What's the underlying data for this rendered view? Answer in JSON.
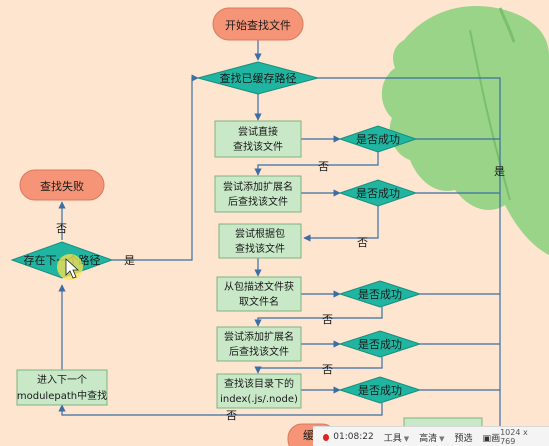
{
  "colors": {
    "background": "#fde5cf",
    "process_fill": "#c8e8c8",
    "process_stroke": "#7fb27f",
    "decision_fill": "#1fb5a0",
    "terminal_fill": "#f59476",
    "arrow": "#3a6ea5",
    "leaf": "#8fd27f"
  },
  "nodes": {
    "start": "开始查找文件",
    "cached": "查找已缓存路径",
    "try_direct": "尝试直接\n查找该文件",
    "try_ext": "尝试添加扩展名\n后查找该文件",
    "try_pkg": "尝试根据包\n查找该文件",
    "from_pkg": "从包描述文件获\n取文件名",
    "try_ext2": "尝试添加扩展名\n后查找该文件",
    "find_index": "查找该目录下的\nindex(.js/.node)",
    "next_mp": "进入下一个\nmodulepath中查找",
    "fail": "查找失败",
    "has_next": "存在下一个路径",
    "bottom_partial": "缓存"
  },
  "decisions": [
    "是否成功",
    "是否成功",
    "是否成功",
    "是否成功",
    "是否成功"
  ],
  "edge_labels": {
    "yes": "是",
    "no": "否"
  },
  "player_bar": {
    "time": "01:08:22",
    "tools": "工具",
    "quality": "高清",
    "preview": "预选",
    "fullscreen": "画",
    "resolution": "1024 x 769"
  }
}
